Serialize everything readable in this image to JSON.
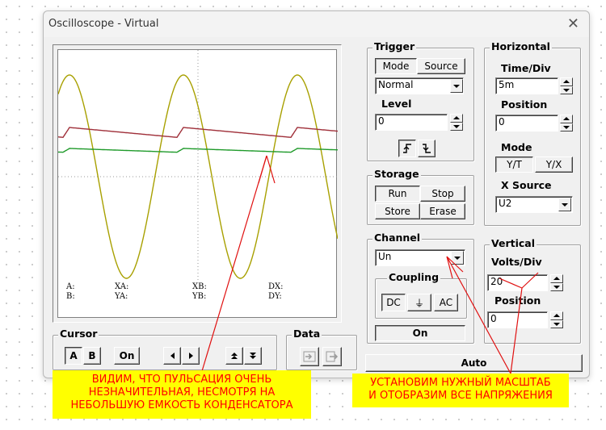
{
  "window": {
    "title": "Oscilloscope - Virtual",
    "close_glyph": "✕"
  },
  "trigger": {
    "group_label": "Trigger",
    "mode_button": "Mode",
    "source_button": "Source",
    "mode_value": "Normal",
    "level_label": "Level",
    "level_value": "0"
  },
  "horizontal": {
    "group_label": "Horizontal",
    "time_div_label": "Time/Div",
    "time_div_value": "5m",
    "position_label": "Position",
    "position_value": "0",
    "mode_label": "Mode",
    "mode_yt": "Y/T",
    "mode_yx": "Y/X",
    "x_source_label": "X Source",
    "x_source_value": "U2"
  },
  "storage": {
    "group_label": "Storage",
    "run": "Run",
    "stop": "Stop",
    "store": "Store",
    "erase": "Erase"
  },
  "channel": {
    "group_label": "Channel",
    "channel_value": "Un",
    "coupling_label": "Coupling",
    "dc": "DC",
    "gnd_glyph": "⏚",
    "ac": "AC",
    "on_button": "On"
  },
  "vertical": {
    "group_label": "Vertical",
    "volts_div_label": "Volts/Div",
    "volts_div_value": "20",
    "position_label": "Position",
    "position_value": "0"
  },
  "cursor": {
    "group_label": "Cursor",
    "a": "A",
    "b": "B",
    "on": "On"
  },
  "data": {
    "group_label": "Data"
  },
  "auto_button": "Auto",
  "readouts": {
    "a": "A:",
    "b": "B:",
    "xa": "XA:",
    "ya": "YA:",
    "xb": "XB:",
    "yb": "YB:",
    "dx": "DX:",
    "dy": "DY:"
  },
  "trace_colors": {
    "sine": "#a8a000",
    "upper": "#a0303a",
    "lower": "#1f9a2a"
  },
  "annotations": {
    "left_line1": "ВИДИМ, ЧТО ПУЛЬСАЦИЯ ОЧЕНЬ",
    "left_line2": "НЕЗНАЧИТЕЛЬНАЯ, НЕСМОТРЯ НА",
    "left_line3": "НЕБОЛЬШУЮ ЕМКОСТЬ КОНДЕНСАТОРА",
    "right_line1": "УСТАНОВИМ НУЖНЫЙ МАСШТАБ",
    "right_line2": "И ОТОБРАЗИМ ВСЕ НАПРЯЖЕНИЯ"
  }
}
